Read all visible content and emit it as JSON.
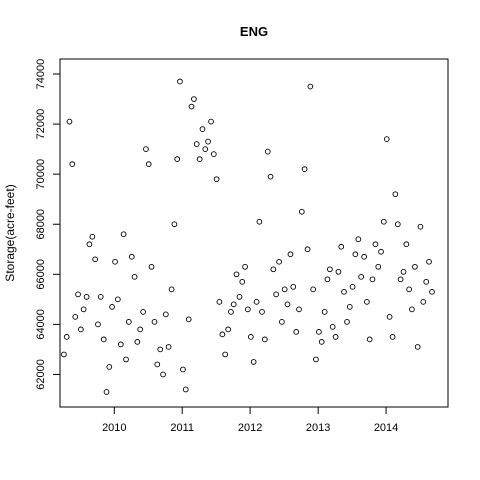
{
  "chart_data": {
    "type": "scatter",
    "title": "ENG",
    "xlabel": "",
    "ylabel": "Storage(acre-feet)",
    "x_type": "date",
    "xlim": [
      "2009-03-15",
      "2014-11-30"
    ],
    "ylim": [
      60700,
      74600
    ],
    "x_ticks": [
      {
        "value": "2010-01-01",
        "label": "2010"
      },
      {
        "value": "2011-01-01",
        "label": "2011"
      },
      {
        "value": "2012-01-01",
        "label": "2012"
      },
      {
        "value": "2013-01-01",
        "label": "2013"
      },
      {
        "value": "2014-01-01",
        "label": "2014"
      }
    ],
    "y_ticks": [
      62000,
      64000,
      66000,
      68000,
      70000,
      72000,
      74000
    ],
    "grid": false,
    "legend": "none",
    "marker": "open-circle",
    "x": [
      "2009-04-05",
      "2009-04-20",
      "2009-05-05",
      "2009-05-20",
      "2009-06-05",
      "2009-06-20",
      "2009-07-05",
      "2009-07-20",
      "2009-08-05",
      "2009-08-20",
      "2009-09-05",
      "2009-09-20",
      "2009-10-05",
      "2009-10-20",
      "2009-11-05",
      "2009-11-20",
      "2009-12-05",
      "2009-12-20",
      "2010-01-05",
      "2010-01-20",
      "2010-02-05",
      "2010-02-20",
      "2010-03-05",
      "2010-03-20",
      "2010-04-05",
      "2010-04-20",
      "2010-05-05",
      "2010-05-20",
      "2010-06-05",
      "2010-06-20",
      "2010-07-05",
      "2010-07-20",
      "2010-08-05",
      "2010-08-20",
      "2010-09-05",
      "2010-09-20",
      "2010-10-05",
      "2010-10-20",
      "2010-11-05",
      "2010-11-20",
      "2010-12-05",
      "2010-12-20",
      "2011-01-05",
      "2011-01-20",
      "2011-02-05",
      "2011-02-20",
      "2011-03-05",
      "2011-03-20",
      "2011-04-05",
      "2011-04-20",
      "2011-05-05",
      "2011-05-20",
      "2011-06-05",
      "2011-06-20",
      "2011-07-05",
      "2011-07-20",
      "2011-08-05",
      "2011-08-20",
      "2011-09-05",
      "2011-09-20",
      "2011-10-05",
      "2011-10-20",
      "2011-11-05",
      "2011-11-20",
      "2011-12-05",
      "2011-12-20",
      "2012-01-05",
      "2012-01-20",
      "2012-02-05",
      "2012-02-20",
      "2012-03-05",
      "2012-03-20",
      "2012-04-05",
      "2012-04-20",
      "2012-05-05",
      "2012-05-20",
      "2012-06-05",
      "2012-06-20",
      "2012-07-05",
      "2012-07-20",
      "2012-08-05",
      "2012-08-20",
      "2012-09-05",
      "2012-09-20",
      "2012-10-05",
      "2012-10-20",
      "2012-11-05",
      "2012-11-20",
      "2012-12-05",
      "2012-12-20",
      "2013-01-05",
      "2013-01-20",
      "2013-02-05",
      "2013-02-20",
      "2013-03-05",
      "2013-03-20",
      "2013-04-05",
      "2013-04-20",
      "2013-05-05",
      "2013-05-20",
      "2013-06-05",
      "2013-06-20",
      "2013-07-05",
      "2013-07-20",
      "2013-08-05",
      "2013-08-20",
      "2013-09-05",
      "2013-09-20",
      "2013-10-05",
      "2013-10-20",
      "2013-11-05",
      "2013-11-20",
      "2013-12-05",
      "2013-12-20",
      "2014-01-05",
      "2014-01-20",
      "2014-02-05",
      "2014-02-20",
      "2014-03-05",
      "2014-03-20",
      "2014-04-05",
      "2014-04-20",
      "2014-05-05",
      "2014-05-20",
      "2014-06-05",
      "2014-06-20",
      "2014-07-05",
      "2014-07-20",
      "2014-08-05",
      "2014-08-20",
      "2014-09-05"
    ],
    "y": [
      62800,
      63500,
      72100,
      70400,
      64300,
      65200,
      63800,
      64600,
      65100,
      67200,
      67500,
      66600,
      64000,
      65100,
      63400,
      61300,
      62300,
      64700,
      66500,
      65000,
      63200,
      67600,
      62600,
      64100,
      66700,
      65900,
      63300,
      63800,
      64500,
      71000,
      70400,
      66300,
      64100,
      62400,
      63000,
      62000,
      64400,
      63100,
      65400,
      68000,
      70600,
      73700,
      62200,
      61400,
      64200,
      72700,
      73000,
      71200,
      70600,
      71800,
      71000,
      71300,
      72100,
      70800,
      69800,
      64900,
      63600,
      62800,
      63800,
      64500,
      64800,
      66000,
      65100,
      65700,
      66300,
      64600,
      63500,
      62500,
      64900,
      68100,
      64500,
      63400,
      70900,
      69900,
      66200,
      65200,
      66500,
      64100,
      65400,
      64800,
      66800,
      65500,
      63700,
      64600,
      68500,
      70200,
      67000,
      73500,
      65400,
      62600,
      63700,
      63300,
      64500,
      65800,
      66200,
      63900,
      63500,
      66100,
      67100,
      65300,
      64100,
      64700,
      65500,
      66800,
      67400,
      65900,
      66700,
      64900,
      63400,
      65800,
      67200,
      66300,
      66900,
      68100,
      71400,
      64300,
      63500,
      69200,
      68000,
      65800,
      66100,
      67200,
      65400,
      64600,
      66300,
      63100,
      67900,
      64900,
      65700,
      66500,
      65300
    ]
  }
}
